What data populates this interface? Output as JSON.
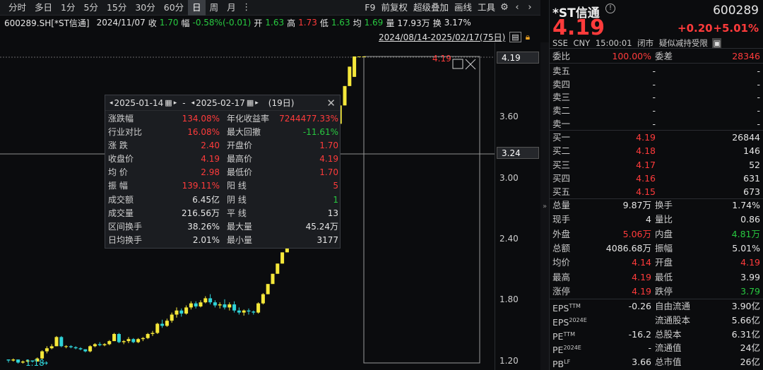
{
  "toolbar": {
    "periods": [
      "分时",
      "多日",
      "1分",
      "5分",
      "15分",
      "30分",
      "60分",
      "日",
      "周",
      "月"
    ],
    "active_period": "日",
    "more_icon": "ellipsis-vertical-icon",
    "tools": [
      "F9",
      "前复权",
      "超级叠加",
      "画线",
      "工具"
    ],
    "icons": [
      "gear-icon",
      "chevron-left-icon",
      "chevron-right-icon"
    ]
  },
  "info": {
    "code": "600289.SH[*ST信通]",
    "date": "2024/11/07",
    "close_label": "收",
    "close": "1.70",
    "change_label": "幅",
    "change": "-0.58%(-0.01)",
    "open_label": "开",
    "open": "1.63",
    "high_label": "高",
    "high": "1.73",
    "low_label": "低",
    "low": "1.63",
    "avg_label": "均",
    "avg": "1.69",
    "vol_label": "量",
    "vol": "17.93万",
    "turn_label": "换",
    "turn": "3.17%"
  },
  "range_bar": {
    "text": "2024/08/14-2025/02/17(75日)"
  },
  "chart_data": {
    "type": "candlestick",
    "price_ticks": [
      "3.60",
      "3.00",
      "2.40",
      "1.80",
      "1.20"
    ],
    "current_price_label": "4.19",
    "crosshair_price_label": "3.24",
    "min_label": "1.18",
    "max_label": "4.19",
    "candles": [
      [
        1.22,
        1.22,
        1.19,
        1.21
      ],
      [
        1.21,
        1.23,
        1.2,
        1.22
      ],
      [
        1.22,
        1.22,
        1.18,
        1.19
      ],
      [
        1.19,
        1.21,
        1.18,
        1.2
      ],
      [
        1.2,
        1.22,
        1.19,
        1.21
      ],
      [
        1.21,
        1.21,
        1.19,
        1.2
      ],
      [
        1.2,
        1.24,
        1.2,
        1.23
      ],
      [
        1.23,
        1.31,
        1.22,
        1.3
      ],
      [
        1.3,
        1.35,
        1.28,
        1.33
      ],
      [
        1.33,
        1.37,
        1.32,
        1.35
      ],
      [
        1.35,
        1.45,
        1.35,
        1.44
      ],
      [
        1.44,
        1.45,
        1.34,
        1.35
      ],
      [
        1.35,
        1.36,
        1.33,
        1.35
      ],
      [
        1.35,
        1.36,
        1.33,
        1.34
      ],
      [
        1.34,
        1.35,
        1.32,
        1.33
      ],
      [
        1.33,
        1.34,
        1.31,
        1.32
      ],
      [
        1.32,
        1.32,
        1.29,
        1.3
      ],
      [
        1.3,
        1.36,
        1.29,
        1.35
      ],
      [
        1.35,
        1.38,
        1.34,
        1.37
      ],
      [
        1.37,
        1.39,
        1.35,
        1.36
      ],
      [
        1.36,
        1.38,
        1.35,
        1.37
      ],
      [
        1.37,
        1.41,
        1.36,
        1.4
      ],
      [
        1.4,
        1.48,
        1.4,
        1.47
      ],
      [
        1.47,
        1.48,
        1.38,
        1.39
      ],
      [
        1.39,
        1.41,
        1.37,
        1.4
      ],
      [
        1.4,
        1.44,
        1.38,
        1.42
      ],
      [
        1.42,
        1.43,
        1.38,
        1.39
      ],
      [
        1.39,
        1.43,
        1.38,
        1.42
      ],
      [
        1.42,
        1.44,
        1.4,
        1.43
      ],
      [
        1.43,
        1.48,
        1.42,
        1.47
      ],
      [
        1.47,
        1.5,
        1.45,
        1.48
      ],
      [
        1.48,
        1.58,
        1.47,
        1.57
      ],
      [
        1.57,
        1.61,
        1.53,
        1.55
      ],
      [
        1.55,
        1.62,
        1.54,
        1.6
      ],
      [
        1.6,
        1.68,
        1.58,
        1.66
      ],
      [
        1.66,
        1.73,
        1.63,
        1.7
      ],
      [
        1.7,
        1.72,
        1.64,
        1.67
      ],
      [
        1.67,
        1.75,
        1.66,
        1.73
      ],
      [
        1.73,
        1.79,
        1.71,
        1.77
      ],
      [
        1.77,
        1.79,
        1.72,
        1.74
      ],
      [
        1.74,
        1.8,
        1.73,
        1.78
      ],
      [
        1.78,
        1.84,
        1.77,
        1.82
      ],
      [
        1.82,
        1.86,
        1.76,
        1.78
      ],
      [
        1.78,
        1.8,
        1.73,
        1.75
      ],
      [
        1.75,
        1.78,
        1.72,
        1.76
      ],
      [
        1.76,
        1.81,
        1.71,
        1.73
      ],
      [
        1.73,
        1.78,
        1.7,
        1.76
      ],
      [
        1.76,
        1.79,
        1.68,
        1.7
      ],
      [
        1.7,
        1.73,
        1.66,
        1.68
      ],
      [
        1.68,
        1.71,
        1.65,
        1.7
      ],
      [
        1.7,
        1.72,
        1.66,
        1.69
      ],
      [
        1.69,
        1.7,
        1.66,
        1.68
      ],
      [
        1.68,
        1.78,
        1.67,
        1.77
      ],
      [
        1.77,
        1.87,
        1.76,
        1.86
      ],
      [
        1.86,
        1.96,
        1.86,
        1.96
      ],
      [
        1.96,
        2.06,
        1.96,
        2.06
      ],
      [
        2.06,
        2.16,
        2.06,
        2.16
      ],
      [
        2.16,
        2.27,
        2.16,
        2.27
      ],
      [
        2.27,
        2.38,
        2.27,
        2.38
      ],
      [
        2.38,
        2.5,
        2.38,
        2.5
      ],
      [
        2.5,
        2.63,
        2.5,
        2.63
      ],
      [
        2.63,
        2.76,
        2.63,
        2.76
      ],
      [
        2.76,
        2.9,
        2.76,
        2.9
      ],
      [
        2.9,
        3.05,
        2.9,
        3.05
      ],
      [
        3.05,
        3.2,
        3.05,
        3.2
      ],
      [
        3.2,
        3.33,
        3.18,
        3.24
      ],
      [
        3.24,
        3.36,
        3.04,
        3.05
      ],
      [
        3.05,
        3.4,
        2.98,
        3.36
      ],
      [
        3.36,
        3.53,
        3.36,
        3.53
      ],
      [
        3.53,
        3.71,
        3.53,
        3.71
      ],
      [
        3.71,
        3.9,
        3.71,
        3.9
      ],
      [
        3.9,
        4.09,
        3.9,
        4.09
      ],
      [
        3.99,
        4.19,
        3.99,
        4.19
      ],
      [
        4.19,
        4.19,
        4.19,
        4.19
      ],
      [
        4.19,
        4.19,
        4.19,
        4.19
      ]
    ]
  },
  "popup": {
    "start_date": "2025-01-14",
    "end_date": "2025-02-17",
    "days": "(19日)",
    "rows": [
      {
        "k1": "涨跌幅",
        "v1": "134.08%",
        "k2": "年化收益率",
        "v2": "7244477.33%",
        "c1": "red",
        "c2": "red"
      },
      {
        "k1": "行业对比",
        "v1": "16.08%",
        "k2": "最大回撤",
        "v2": "-11.61%",
        "c1": "red",
        "c2": "green"
      },
      {
        "k1": "涨 跌",
        "v1": "2.40",
        "k2": "开盘价",
        "v2": "1.70",
        "c1": "red",
        "c2": "red"
      },
      {
        "k1": "收盘价",
        "v1": "4.19",
        "k2": "最高价",
        "v2": "4.19",
        "c1": "red",
        "c2": "red"
      },
      {
        "k1": "均 价",
        "v1": "2.98",
        "k2": "最低价",
        "v2": "1.70",
        "c1": "red",
        "c2": "red"
      },
      {
        "k1": "振 幅",
        "v1": "139.11%",
        "k2": "阳 线",
        "v2": "5",
        "c1": "red",
        "c2": "red"
      },
      {
        "k1": "成交额",
        "v1": "6.45亿",
        "k2": "阴 线",
        "v2": "1",
        "c1": "white",
        "c2": "green"
      },
      {
        "k1": "成交量",
        "v1": "216.56万",
        "k2": "平 线",
        "v2": "13",
        "c1": "white",
        "c2": "white"
      },
      {
        "k1": "区间换手",
        "v1": "38.26%",
        "k2": "最大量",
        "v2": "45.24万",
        "c1": "white",
        "c2": "white"
      },
      {
        "k1": "日均换手",
        "v1": "2.01%",
        "k2": "最小量",
        "v2": "3177",
        "c1": "white",
        "c2": "white"
      }
    ]
  },
  "quote": {
    "name": "*ST信通",
    "code": "600289",
    "price": "4.19",
    "change": "+0.20",
    "change_pct": "+5.01%",
    "exchange": "SSE",
    "currency": "CNY",
    "time": "15:00:01",
    "status": "闭市",
    "note": "疑似减持受限",
    "webi_label": "委比",
    "webi": "100.00%",
    "weicha_label": "委差",
    "weicha": "28346"
  },
  "sell_orders": [
    {
      "label": "卖五",
      "price": "-",
      "vol": "-"
    },
    {
      "label": "卖四",
      "price": "-",
      "vol": "-"
    },
    {
      "label": "卖三",
      "price": "-",
      "vol": "-"
    },
    {
      "label": "卖二",
      "price": "-",
      "vol": "-"
    },
    {
      "label": "卖一",
      "price": "-",
      "vol": "-"
    }
  ],
  "buy_orders": [
    {
      "label": "买一",
      "price": "4.19",
      "vol": "26844"
    },
    {
      "label": "买二",
      "price": "4.18",
      "vol": "146"
    },
    {
      "label": "买三",
      "price": "4.17",
      "vol": "52"
    },
    {
      "label": "买四",
      "price": "4.16",
      "vol": "631"
    },
    {
      "label": "买五",
      "price": "4.15",
      "vol": "673"
    }
  ],
  "stats": [
    {
      "k1": "总量",
      "v1": "9.87万",
      "c1": "white",
      "k2": "换手",
      "v2": "1.74%",
      "c2": "white"
    },
    {
      "k1": "现手",
      "v1": "4",
      "c1": "white",
      "k2": "量比",
      "v2": "0.86",
      "c2": "white"
    },
    {
      "k1": "外盘",
      "v1": "5.06万",
      "c1": "red",
      "k2": "内盘",
      "v2": "4.81万",
      "c2": "green"
    },
    {
      "k1": "总额",
      "v1": "4086.68万",
      "c1": "white",
      "k2": "振幅",
      "v2": "5.01%",
      "c2": "white"
    },
    {
      "k1": "均价",
      "v1": "4.14",
      "c1": "red",
      "k2": "开盘",
      "v2": "4.19",
      "c2": "red"
    },
    {
      "k1": "最高",
      "v1": "4.19",
      "c1": "red",
      "k2": "最低",
      "v2": "3.99",
      "c2": "white"
    },
    {
      "k1": "涨停",
      "v1": "4.19",
      "c1": "red",
      "k2": "跌停",
      "v2": "3.79",
      "c2": "green"
    }
  ],
  "fundamentals": [
    {
      "k1": "EPS",
      "s1": "TTM",
      "v1": "-0.26",
      "k2": "自由流通",
      "v2": "3.90亿"
    },
    {
      "k1": "EPS",
      "s1": "2024E",
      "v1": "",
      "k2": "流通股本",
      "v2": "5.66亿"
    },
    {
      "k1": "PE",
      "s1": "TTM",
      "v1": "-16.2",
      "k2": "总股本",
      "v2": "6.31亿"
    },
    {
      "k1": "PE",
      "s1": "2024E",
      "v1": "-",
      "k2": "流通值",
      "v2": "24亿"
    },
    {
      "k1": "PB",
      "s1": "LF",
      "v1": "3.66",
      "k2": "总市值",
      "v2": "26亿"
    }
  ],
  "colors": {
    "up": "#ff3b3b",
    "down": "#28c940",
    "bull_candle": "#f5e83a",
    "bear_candle": "#2fd3d8"
  }
}
